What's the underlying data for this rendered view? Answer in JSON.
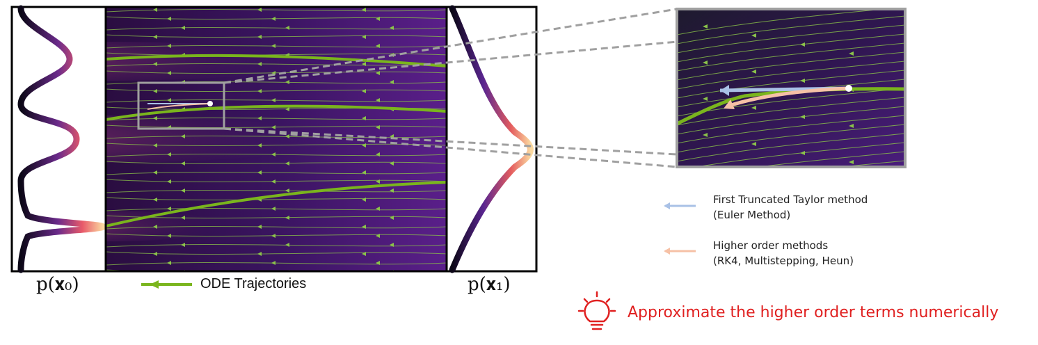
{
  "labels": {
    "p_x0": "p(𝐱₀)",
    "p_x1": "p(𝐱₁)",
    "ode_trajectories": "ODE Trajectories",
    "tip": "Approximate the higher order terms numerically"
  },
  "legend": {
    "euler": {
      "line1": "First Truncated Taylor method",
      "line2": "(Euler Method)",
      "color": "#a9c1e6"
    },
    "higher": {
      "line1": "Higher order methods",
      "line2": "(RK4, Multistepping, Heun)",
      "color": "#f6c1a6"
    }
  },
  "colors": {
    "trajectory": "#7ab51d",
    "field": "#8bc34a",
    "tip": "#e02020",
    "zoom_box": "#a0a0a0"
  },
  "icons": {
    "tip": "lightbulb-icon"
  }
}
